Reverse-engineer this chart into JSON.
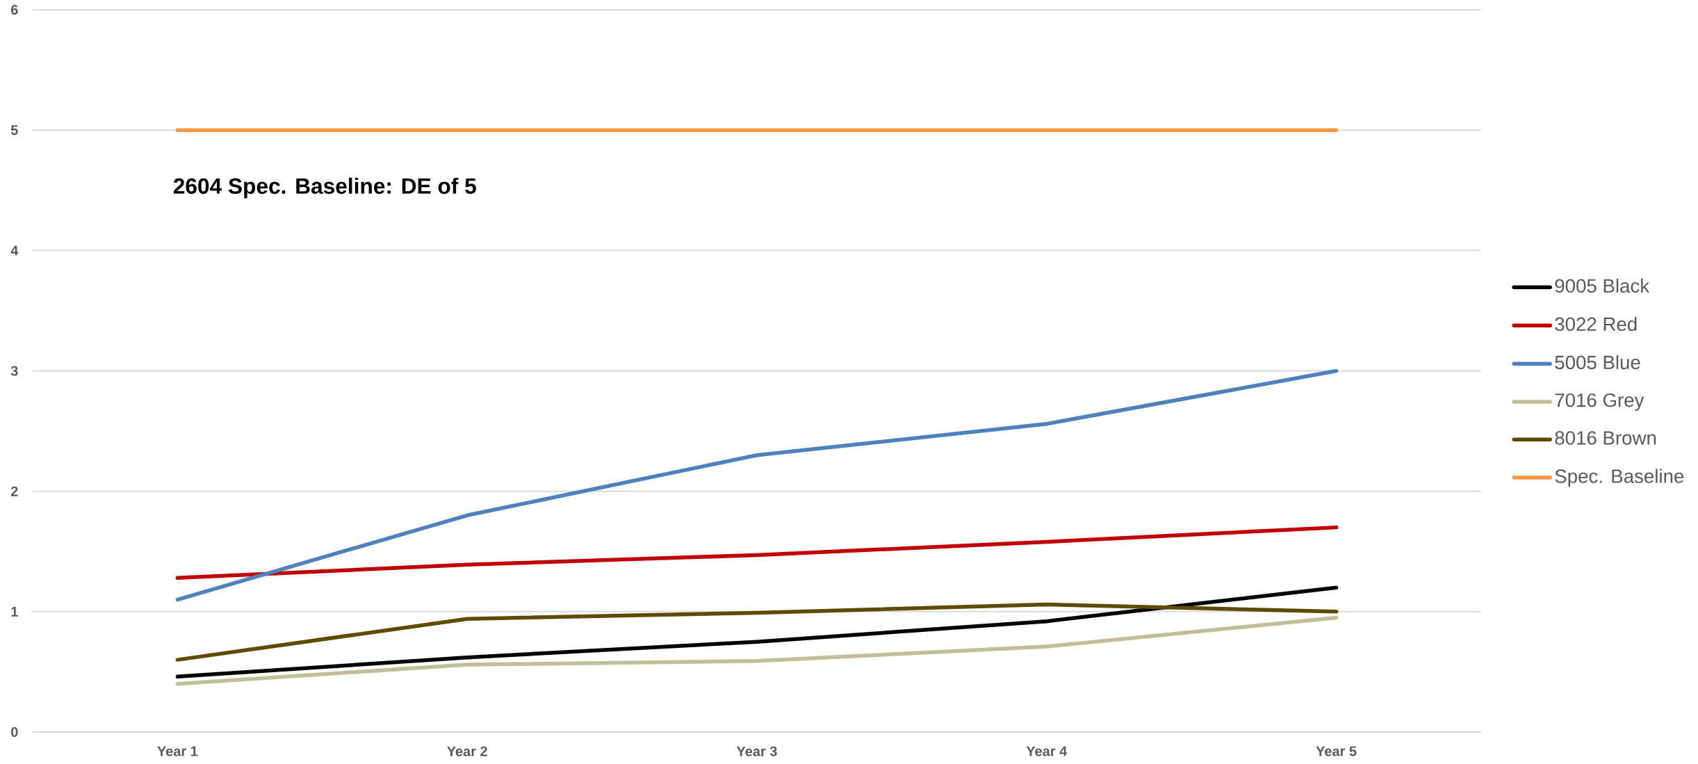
{
  "chart_data": {
    "type": "line",
    "title": "2604 Spec. Baseline: DE of 5",
    "categories": [
      "Year 1",
      "Year 2",
      "Year 3",
      "Year 4",
      "Year 5"
    ],
    "series": [
      {
        "name": "9005 Black",
        "color": "#000000",
        "values": [
          0.46,
          0.62,
          0.75,
          0.92,
          1.2
        ]
      },
      {
        "name": "3022 Red",
        "color": "#c00000",
        "values": [
          1.28,
          1.39,
          1.47,
          1.58,
          1.7
        ]
      },
      {
        "name": "5005 Blue",
        "color": "#4f81bd",
        "values": [
          1.1,
          1.8,
          2.3,
          2.56,
          3.0
        ]
      },
      {
        "name": "7016 Grey",
        "color": "#c4bd97",
        "values": [
          0.4,
          0.56,
          0.59,
          0.71,
          0.95
        ]
      },
      {
        "name": "8016 Brown",
        "color": "#5f4a00",
        "values": [
          0.6,
          0.94,
          0.99,
          1.06,
          1.0
        ]
      },
      {
        "name": "Spec. Baseline",
        "color": "#f79646",
        "values": [
          5,
          5,
          5,
          5,
          5
        ]
      }
    ],
    "ylim": [
      0,
      6
    ],
    "yticks": [
      0,
      1,
      2,
      3,
      4,
      5,
      6
    ],
    "grid": "y",
    "legend": "right",
    "marker": "none",
    "line_style": "solid"
  }
}
